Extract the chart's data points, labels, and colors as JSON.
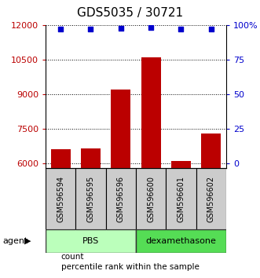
{
  "title": "GDS5035 / 30721",
  "samples": [
    "GSM596594",
    "GSM596595",
    "GSM596596",
    "GSM596600",
    "GSM596601",
    "GSM596602"
  ],
  "bar_values": [
    6620,
    6650,
    9200,
    10600,
    6100,
    7300
  ],
  "percentile_values": [
    97,
    97,
    97.5,
    98,
    97,
    97
  ],
  "bar_color": "#bb0000",
  "dot_color": "#0000cc",
  "ylim_left": [
    5800,
    12000
  ],
  "ylim_right": [
    -3.33,
    100
  ],
  "yticks_left": [
    6000,
    7500,
    9000,
    10500,
    12000
  ],
  "yticks_right": [
    0,
    25,
    50,
    75,
    100
  ],
  "groups": [
    {
      "label": "PBS",
      "indices": [
        0,
        1,
        2
      ],
      "color": "#bbffbb"
    },
    {
      "label": "dexamethasone",
      "indices": [
        3,
        4,
        5
      ],
      "color": "#55dd55"
    }
  ],
  "legend_items": [
    {
      "label": "count",
      "color": "#bb0000"
    },
    {
      "label": "percentile rank within the sample",
      "color": "#0000cc"
    }
  ],
  "bg_color": "#ffffff",
  "gray_box_color": "#cccccc",
  "title_fontsize": 11,
  "tick_fontsize": 8,
  "sample_fontsize": 7
}
